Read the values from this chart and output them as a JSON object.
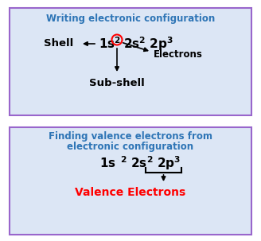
{
  "bg_color": "#ffffff",
  "box1_bg": "#dce6f5",
  "box2_bg": "#dce6f5",
  "box_edge_color": "#9966cc",
  "title1": "Writing electronic configuration",
  "title1_color": "#2E75B6",
  "title2_line1": "Finding valence electrons from",
  "title2_line2": "electronic configuration",
  "title2_color": "#2E75B6",
  "shell_label": "Shell",
  "electrons_label": "Electrons",
  "subshell_label": "Sub-shell",
  "valence_label": "Valence Electrons",
  "valence_color": "#FF0000",
  "text_color": "#000000",
  "arrow_color": "#000000",
  "circle_color": "#FF0000"
}
